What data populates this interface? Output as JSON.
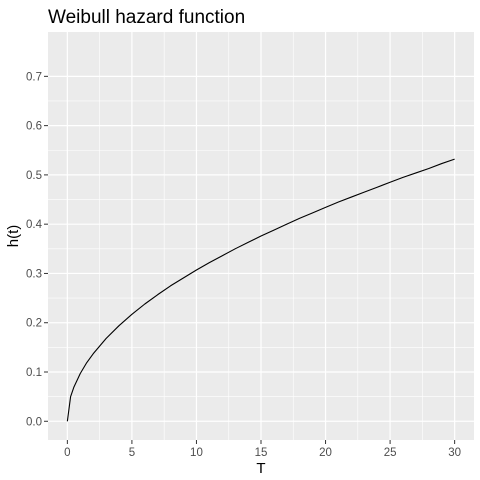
{
  "chart_data": {
    "type": "line",
    "title": "Weibull hazard function",
    "xlabel": "T",
    "ylabel": "h(t)",
    "xlim": [
      -1.5,
      31.5
    ],
    "ylim": [
      -0.038,
      0.79
    ],
    "x_ticks": [
      0,
      5,
      10,
      15,
      20,
      25,
      30
    ],
    "x_tick_labels": [
      "0",
      "5",
      "10",
      "15",
      "20",
      "25",
      "30"
    ],
    "y_ticks": [
      0.0,
      0.1,
      0.2,
      0.3,
      0.4,
      0.5,
      0.6,
      0.7
    ],
    "y_tick_labels": [
      "0.0",
      "0.1",
      "0.2",
      "0.3",
      "0.4",
      "0.5",
      "0.6",
      "0.7"
    ],
    "grid": true,
    "legend": "none",
    "series": [
      {
        "x": [
          0,
          0.25,
          0.5,
          1,
          1.5,
          2,
          3,
          4,
          5,
          6,
          7,
          8,
          9,
          10,
          11,
          12,
          13,
          14,
          15,
          16,
          17,
          18,
          19,
          20,
          21,
          22,
          23,
          24,
          25,
          26,
          27,
          28,
          29,
          30
        ],
        "y": [
          0,
          0.05,
          0.069,
          0.097,
          0.119,
          0.137,
          0.168,
          0.194,
          0.217,
          0.238,
          0.257,
          0.275,
          0.291,
          0.307,
          0.322,
          0.336,
          0.35,
          0.363,
          0.376,
          0.388,
          0.4,
          0.412,
          0.423,
          0.434,
          0.445,
          0.455,
          0.465,
          0.475,
          0.485,
          0.495,
          0.504,
          0.513,
          0.523,
          0.532
        ]
      }
    ]
  }
}
